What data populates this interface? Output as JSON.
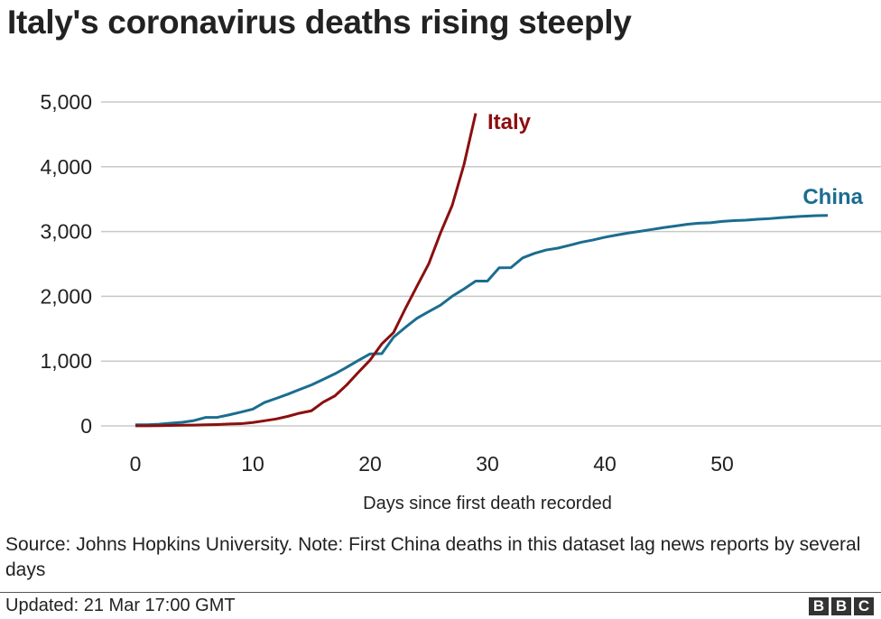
{
  "title": "Italy's coronavirus deaths rising steeply",
  "source": "Source: Johns Hopkins University. Note: First China deaths in this dataset lag news reports by several days",
  "updated": "Updated: 21 Mar 17:00 GMT",
  "logo": "BBC",
  "chart_data": {
    "type": "line",
    "title": "Italy's coronavirus deaths rising steeply",
    "xlabel": "Days since first death recorded",
    "ylabel": "",
    "xlim": [
      0,
      59
    ],
    "ylim": [
      0,
      5000
    ],
    "xticks": [
      0,
      10,
      20,
      30,
      40,
      50
    ],
    "xtick_labels": [
      "0",
      "10",
      "20",
      "30",
      "40",
      "50"
    ],
    "yticks": [
      0,
      1000,
      2000,
      3000,
      4000,
      5000
    ],
    "ytick_labels": [
      "0",
      "1,000",
      "2,000",
      "3,000",
      "4,000",
      "5,000"
    ],
    "grid": "horizontal",
    "series": [
      {
        "name": "Italy",
        "color": "#8b0f0f",
        "values": [
          1,
          2,
          3,
          7,
          10,
          12,
          17,
          21,
          29,
          34,
          52,
          79,
          107,
          148,
          197,
          233,
          366,
          463,
          631,
          827,
          1016,
          1266,
          1441,
          1809,
          2158,
          2503,
          2978,
          3405,
          4032,
          4825
        ]
      },
      {
        "name": "China",
        "color": "#1b6d8f",
        "values": [
          17,
          18,
          26,
          42,
          56,
          82,
          131,
          133,
          171,
          213,
          259,
          361,
          425,
          490,
          562,
          632,
          717,
          804,
          904,
          1011,
          1111,
          1116,
          1368,
          1520,
          1662,
          1765,
          1863,
          2002,
          2114,
          2236,
          2236,
          2441,
          2443,
          2593,
          2663,
          2715,
          2744,
          2788,
          2835,
          2870,
          2912,
          2946,
          2977,
          3003,
          3032,
          3060,
          3085,
          3111,
          3129,
          3136,
          3157,
          3169,
          3176,
          3189,
          3199,
          3213,
          3226,
          3237,
          3245,
          3249
        ]
      }
    ]
  }
}
